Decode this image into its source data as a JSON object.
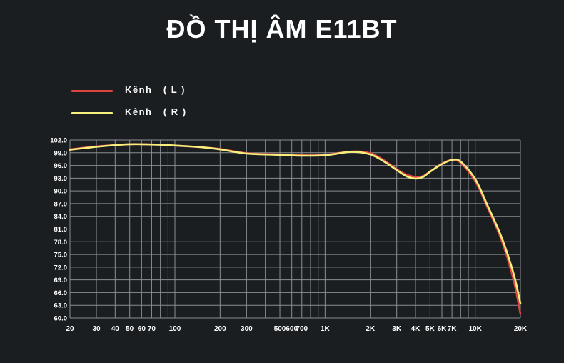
{
  "title": "ĐỒ THỊ ÂM E11BT",
  "colors": {
    "background": "#1b1e21",
    "grid": "#8a8e93",
    "left_channel": "#e0443e",
    "right_channel": "#f7ef7d"
  },
  "chart_data": {
    "type": "line",
    "title": "ĐỒ THỊ ÂM E11BT",
    "xlabel": "",
    "ylabel": "",
    "x_scale": "log",
    "xlim": [
      20,
      20000
    ],
    "ylim": [
      60,
      102
    ],
    "grid": true,
    "legend_position": "top-left",
    "y_ticks": [
      "102.0",
      "99.0",
      "96.0",
      "93.0",
      "90.0",
      "87.0",
      "84.0",
      "81.0",
      "78.0",
      "75.0",
      "72.0",
      "69.0",
      "66.0",
      "63.0",
      "60.0"
    ],
    "x_ticks": [
      {
        "value": 20,
        "label": "20"
      },
      {
        "value": 30,
        "label": "30"
      },
      {
        "value": 40,
        "label": "40"
      },
      {
        "value": 50,
        "label": "50"
      },
      {
        "value": 60,
        "label": "60"
      },
      {
        "value": 70,
        "label": "70"
      },
      {
        "value": 100,
        "label": "100"
      },
      {
        "value": 200,
        "label": "200"
      },
      {
        "value": 300,
        "label": "300"
      },
      {
        "value": 500,
        "label": "500"
      },
      {
        "value": 600,
        "label": "600"
      },
      {
        "value": 700,
        "label": "700"
      },
      {
        "value": 1000,
        "label": "1K"
      },
      {
        "value": 2000,
        "label": "2K"
      },
      {
        "value": 3000,
        "label": "3K"
      },
      {
        "value": 4000,
        "label": "4K"
      },
      {
        "value": 5000,
        "label": "5K"
      },
      {
        "value": 6000,
        "label": "6K"
      },
      {
        "value": 7000,
        "label": "7K"
      },
      {
        "value": 10000,
        "label": "10K"
      },
      {
        "value": 20000,
        "label": "20K"
      }
    ],
    "grid_x": [
      20,
      30,
      40,
      50,
      60,
      70,
      80,
      90,
      100,
      200,
      300,
      400,
      500,
      600,
      700,
      800,
      900,
      1000,
      2000,
      3000,
      4000,
      5000,
      6000,
      7000,
      8000,
      9000,
      10000,
      20000
    ],
    "series": [
      {
        "name": "Kênh   ( L )",
        "color": "#e0443e",
        "x": [
          20,
          30,
          40,
          50,
          60,
          80,
          100,
          150,
          200,
          300,
          500,
          700,
          1000,
          1500,
          2000,
          2500,
          3000,
          3500,
          4000,
          4500,
          5000,
          6000,
          7000,
          8000,
          10000,
          12000,
          15000,
          18000,
          20000
        ],
        "y": [
          99.8,
          100.5,
          100.8,
          101.0,
          101.0,
          100.9,
          100.7,
          100.3,
          99.9,
          98.9,
          98.6,
          98.4,
          98.5,
          99.3,
          98.9,
          97.1,
          95.1,
          93.8,
          93.3,
          93.5,
          94.6,
          96.4,
          97.3,
          96.6,
          92.3,
          86.3,
          78.3,
          69.0,
          61.0
        ]
      },
      {
        "name": "Kênh   ( R )",
        "color": "#f7ef7d",
        "x": [
          20,
          30,
          40,
          50,
          60,
          80,
          100,
          150,
          200,
          300,
          500,
          700,
          1000,
          1500,
          2000,
          2500,
          3000,
          3500,
          4000,
          4500,
          5000,
          6000,
          7000,
          8000,
          10000,
          12000,
          15000,
          18000,
          20000
        ],
        "y": [
          99.7,
          100.4,
          100.8,
          101.0,
          101.0,
          100.9,
          100.7,
          100.3,
          99.8,
          98.8,
          98.5,
          98.3,
          98.4,
          99.2,
          98.6,
          96.8,
          94.9,
          93.4,
          92.9,
          93.3,
          94.5,
          96.3,
          97.3,
          96.9,
          92.8,
          86.8,
          79.0,
          70.5,
          63.5
        ]
      }
    ]
  }
}
